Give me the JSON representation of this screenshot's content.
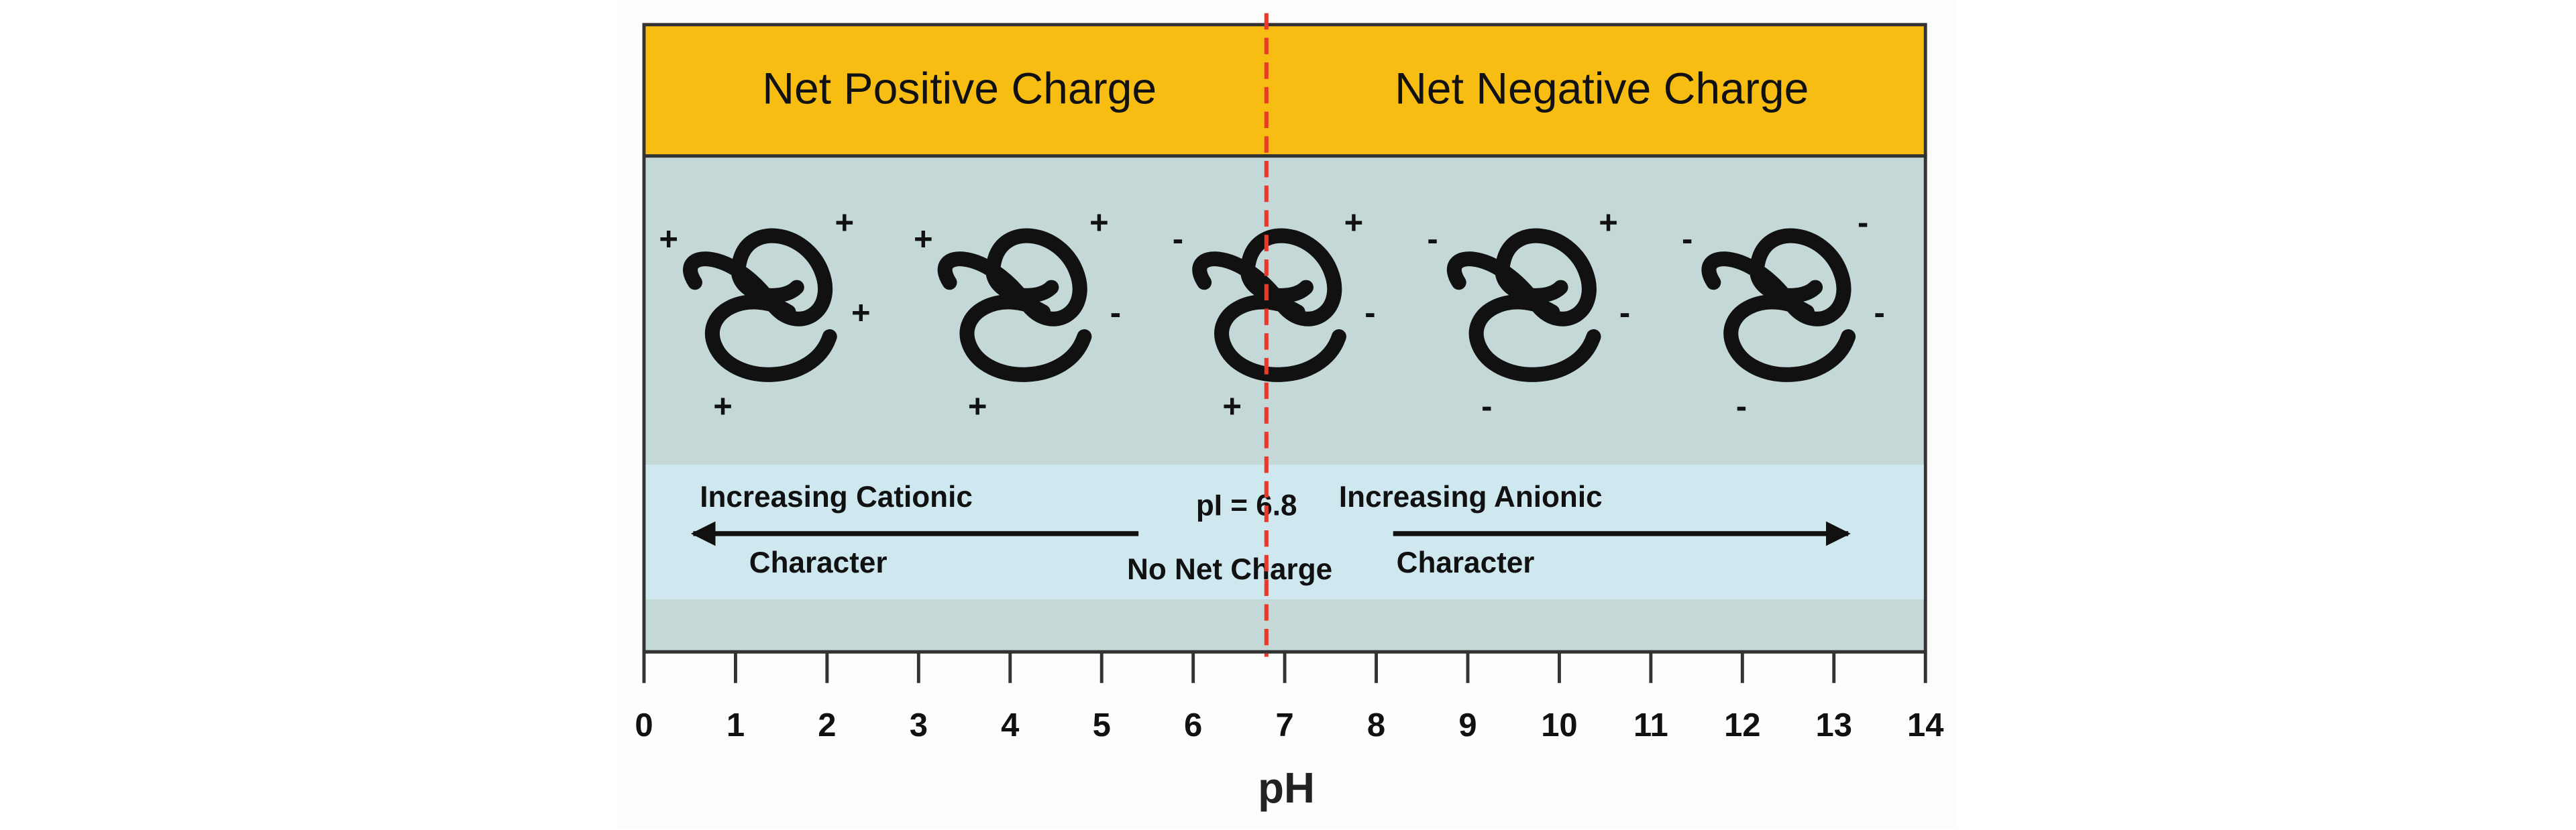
{
  "header": {
    "left": "Net Positive Charge",
    "right": "Net Negative Charge"
  },
  "proteins": [
    {
      "charges": [
        "+",
        "+",
        "+",
        "+"
      ]
    },
    {
      "charges": [
        "+",
        "+",
        "-",
        "+"
      ]
    },
    {
      "charges": [
        "-",
        "+",
        "-",
        "+"
      ]
    },
    {
      "charges": [
        "-",
        "+",
        "-",
        "-"
      ]
    },
    {
      "charges": [
        "-",
        "-",
        "-",
        "-"
      ]
    }
  ],
  "cationic": {
    "line1": "Increasing Cationic",
    "line2": "Character"
  },
  "anionic": {
    "line1": "Increasing Anionic",
    "line2": "Character"
  },
  "pI": {
    "label": "pI = 6.8",
    "value": 6.8,
    "note": "No Net Charge"
  },
  "axis": {
    "label": "pH",
    "lim": [
      0,
      14
    ],
    "ticks": [
      0,
      1,
      2,
      3,
      4,
      5,
      6,
      7,
      8,
      9,
      10,
      11,
      12,
      13,
      14
    ]
  }
}
